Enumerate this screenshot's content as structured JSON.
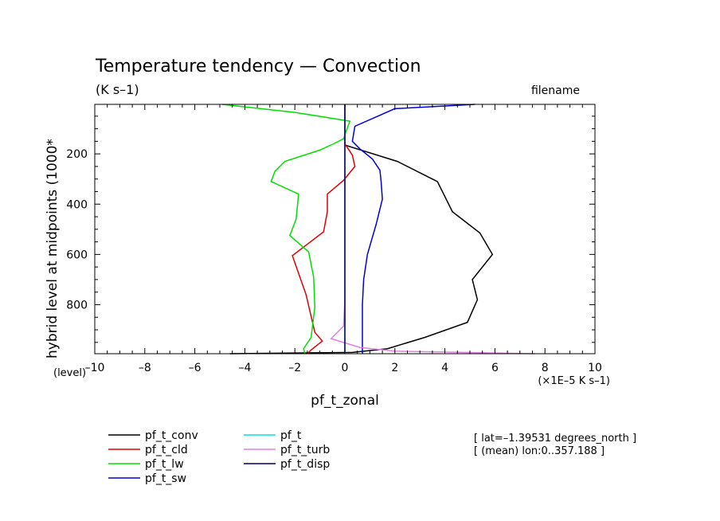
{
  "chart_data": {
    "type": "line",
    "title": "Temperature tendency — Convection",
    "subtitle": "(K s–1)",
    "filename_label": "filename",
    "ylabel": "hybrid level at midpoints (1000*",
    "y_axis_unit": "(level)",
    "xlabel": "pf_t_zonal",
    "x_unit": "(×1E–5 K s–1)",
    "xlim": [
      -10,
      10
    ],
    "ylim": [
      995,
      3
    ],
    "x_ticks": [
      -10,
      -8,
      -6,
      -4,
      -2,
      0,
      2,
      4,
      6,
      8,
      10
    ],
    "x_tick_labels": [
      "–10",
      "–8",
      "–6",
      "–4",
      "–2",
      "0",
      "2",
      "4",
      "6",
      "8",
      "10"
    ],
    "y_ticks": [
      200,
      400,
      600,
      800
    ],
    "y_tick_labels": [
      "200",
      "400",
      "600",
      "800"
    ],
    "info": [
      "[ lat=–1.39531 degrees_north ]",
      "[ (mean) lon:0..357.188 ]"
    ],
    "series": [
      {
        "name": "pf_t_conv",
        "color": "#000000",
        "points": [
          [
            0,
            3
          ],
          [
            0,
            158
          ],
          [
            0,
            165
          ],
          [
            2.1,
            230
          ],
          [
            3.7,
            310
          ],
          [
            4.3,
            430
          ],
          [
            5.4,
            515
          ],
          [
            5.9,
            600
          ],
          [
            5.1,
            700
          ],
          [
            5.3,
            780
          ],
          [
            4.9,
            870
          ],
          [
            3.2,
            930
          ],
          [
            1.7,
            975
          ],
          [
            0.3,
            990
          ],
          [
            -4.6,
            995
          ]
        ]
      },
      {
        "name": "pf_t_cld",
        "color": "#e00000",
        "points": [
          [
            0,
            3
          ],
          [
            0,
            160
          ],
          [
            0.3,
            205
          ],
          [
            0.4,
            250
          ],
          [
            -0.05,
            305
          ],
          [
            -0.7,
            360
          ],
          [
            -0.7,
            430
          ],
          [
            -0.85,
            510
          ],
          [
            -2.1,
            605
          ],
          [
            -1.55,
            760
          ],
          [
            -1.2,
            910
          ],
          [
            -0.9,
            945
          ],
          [
            -1.35,
            980
          ],
          [
            -1.5,
            995
          ]
        ]
      },
      {
        "name": "pf_t_lw",
        "color": "#00e000",
        "points": [
          [
            -4.9,
            3
          ],
          [
            -2.0,
            35
          ],
          [
            0.2,
            70
          ],
          [
            0.05,
            110
          ],
          [
            -0.05,
            140
          ],
          [
            -0.45,
            160
          ],
          [
            -1.0,
            185
          ],
          [
            -2.4,
            230
          ],
          [
            -2.8,
            270
          ],
          [
            -2.95,
            310
          ],
          [
            -1.85,
            360
          ],
          [
            -1.95,
            460
          ],
          [
            -2.2,
            525
          ],
          [
            -1.45,
            590
          ],
          [
            -1.25,
            690
          ],
          [
            -1.2,
            810
          ],
          [
            -1.35,
            930
          ],
          [
            -1.65,
            975
          ],
          [
            -1.6,
            995
          ]
        ]
      },
      {
        "name": "pf_t_sw",
        "color": "#0000e0",
        "points": [
          [
            5.2,
            3
          ],
          [
            2.0,
            20
          ],
          [
            0.4,
            90
          ],
          [
            0.3,
            150
          ],
          [
            0.6,
            180
          ],
          [
            1.1,
            220
          ],
          [
            1.4,
            265
          ],
          [
            1.45,
            310
          ],
          [
            1.5,
            380
          ],
          [
            1.25,
            480
          ],
          [
            0.9,
            600
          ],
          [
            0.75,
            700
          ],
          [
            0.7,
            800
          ],
          [
            0.7,
            995
          ]
        ]
      },
      {
        "name": "pf_t",
        "color": "#00e0e0",
        "points": [
          [
            0,
            3
          ],
          [
            0,
            995
          ]
        ]
      },
      {
        "name": "pf_t_turb",
        "color": "#e080e0",
        "points": [
          [
            0,
            3
          ],
          [
            0,
            780
          ],
          [
            -0.05,
            885
          ],
          [
            -0.55,
            935
          ],
          [
            0.6,
            970
          ],
          [
            2.0,
            985
          ],
          [
            7.6,
            995
          ]
        ]
      },
      {
        "name": "pf_t_disp",
        "color": "#000060",
        "points": [
          [
            0,
            3
          ],
          [
            0,
            995
          ]
        ]
      }
    ]
  }
}
